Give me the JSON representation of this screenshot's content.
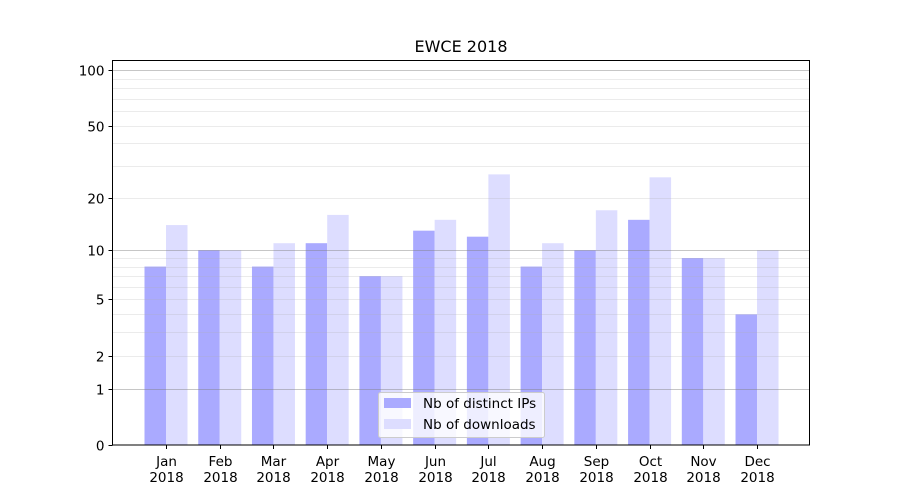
{
  "chart_data": {
    "type": "bar",
    "title": "EWCE 2018",
    "xlabel": "",
    "ylabel": "",
    "yscale": "log(1+x)",
    "ylim": [
      0,
      110
    ],
    "y_ticks": [
      0,
      1,
      2,
      5,
      10,
      20,
      50,
      100
    ],
    "y_minor_grid": [
      3,
      4,
      6,
      7,
      8,
      9,
      30,
      40,
      60,
      70,
      80,
      90
    ],
    "y_major_grid": [
      1,
      10,
      100
    ],
    "grid": true,
    "legend_position": "lower-center",
    "categories": [
      [
        "Jan",
        "2018"
      ],
      [
        "Feb",
        "2018"
      ],
      [
        "Mar",
        "2018"
      ],
      [
        "Apr",
        "2018"
      ],
      [
        "May",
        "2018"
      ],
      [
        "Jun",
        "2018"
      ],
      [
        "Jul",
        "2018"
      ],
      [
        "Aug",
        "2018"
      ],
      [
        "Sep",
        "2018"
      ],
      [
        "Oct",
        "2018"
      ],
      [
        "Nov",
        "2018"
      ],
      [
        "Dec",
        "2018"
      ]
    ],
    "series": [
      {
        "name": "Nb of distinct IPs",
        "color": "#aaaaff",
        "values": [
          8,
          10,
          8,
          11,
          7,
          13,
          12,
          8,
          10,
          15,
          9,
          4
        ]
      },
      {
        "name": "Nb of downloads",
        "color": "#ddddff",
        "values": [
          14,
          10,
          11,
          16,
          7,
          15,
          27,
          11,
          17,
          26,
          9,
          10
        ]
      }
    ]
  }
}
